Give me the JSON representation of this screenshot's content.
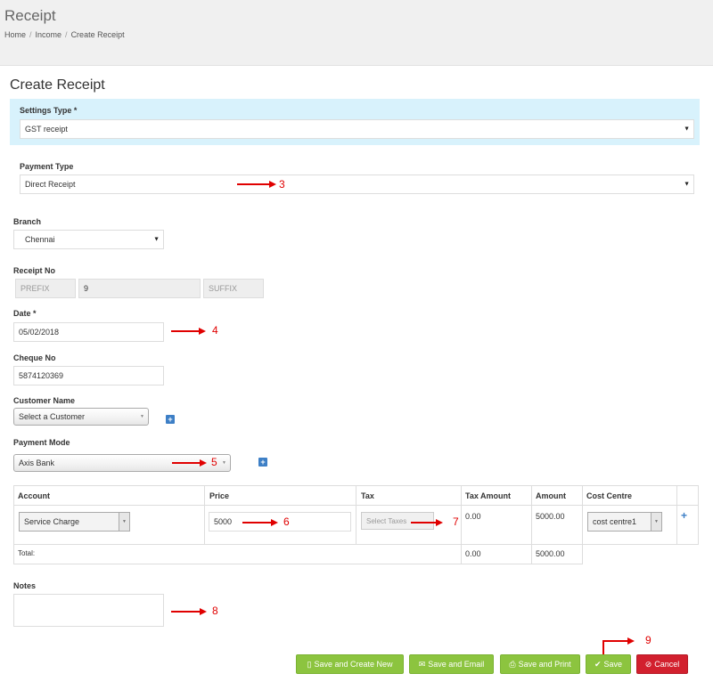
{
  "header": {
    "title": "Receipt",
    "breadcrumb": [
      "Home",
      "Income",
      "Create Receipt"
    ],
    "breadcrumb_separator": "/"
  },
  "form": {
    "heading": "Create Receipt",
    "settings_type": {
      "label": "Settings Type *",
      "value": "GST receipt"
    },
    "payment_type": {
      "label": "Payment Type",
      "value": "Direct Receipt"
    },
    "branch": {
      "label": "Branch",
      "value": "Chennai"
    },
    "receipt_no": {
      "label": "Receipt No",
      "prefix_placeholder": "PREFIX",
      "number": "9",
      "suffix_placeholder": "SUFFIX"
    },
    "date": {
      "label": "Date *",
      "value": "05/02/2018"
    },
    "cheque_no": {
      "label": "Cheque No",
      "value": "5874120369"
    },
    "customer_name": {
      "label": "Customer Name",
      "value": "Select a Customer"
    },
    "payment_mode": {
      "label": "Payment Mode",
      "value": "Axis Bank"
    },
    "notes": {
      "label": "Notes",
      "value": ""
    }
  },
  "table": {
    "headers": [
      "Account",
      "Price",
      "Tax",
      "Tax Amount",
      "Amount",
      "Cost Centre"
    ],
    "row": {
      "account": "Service Charge",
      "price": "5000",
      "tax_placeholder": "Select Taxes",
      "tax_amount": "0.00",
      "amount": "5000.00",
      "cost_centre": "cost centre1",
      "add_symbol": "+"
    },
    "total": {
      "label": "Total:",
      "tax_amount": "0.00",
      "amount": "5000.00"
    }
  },
  "buttons": {
    "save_and_create_new": "Save and Create New",
    "save_and_email": "Save and Email",
    "save_and_print": "Save and Print",
    "save": "Save",
    "cancel": "Cancel"
  },
  "annotations": [
    "3",
    "4",
    "5",
    "6",
    "7",
    "8",
    "9"
  ],
  "colors": {
    "settings_panel": "#d8f2fc",
    "button_green": "#8cc43f",
    "button_red": "#d2202e",
    "add_blue": "#3d7fc6",
    "annotation_red": "#e00000"
  },
  "icons": {
    "select_caret": "caret-down-icon",
    "add": "plus-square-icon",
    "save_new": "file-icon",
    "email": "envelope-icon",
    "print": "print-icon",
    "save": "check-icon",
    "cancel": "ban-icon"
  }
}
